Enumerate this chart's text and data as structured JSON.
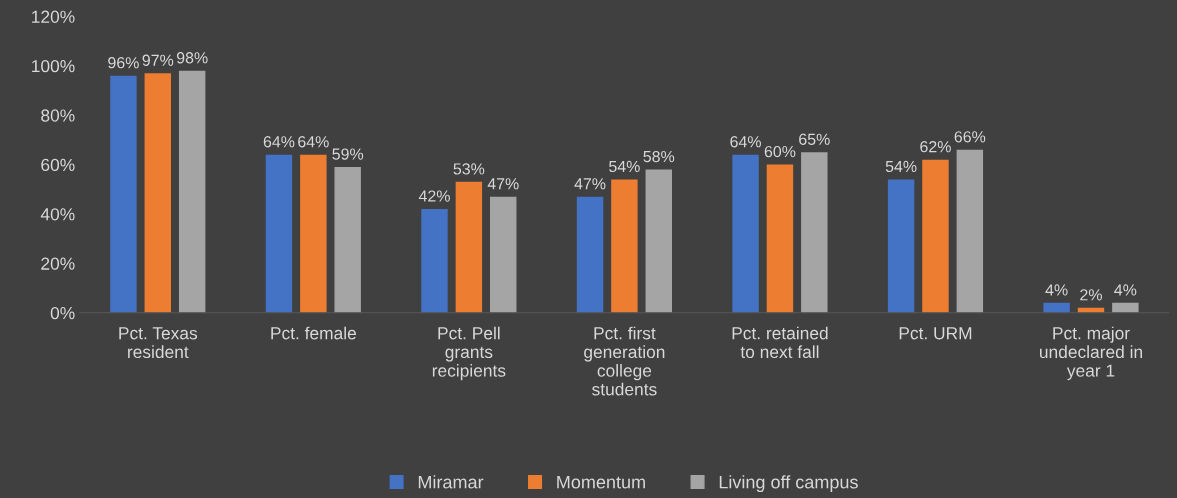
{
  "chart_data": {
    "type": "bar",
    "categories": [
      "Pct. Texas resident",
      "Pct. female",
      "Pct. Pell grants recipients",
      "Pct. first generation college students",
      "Pct. retained to next fall",
      "Pct. URM",
      "Pct. major undeclared in year 1"
    ],
    "series": [
      {
        "name": "Miramar",
        "color": "#4472c4",
        "values": [
          96,
          64,
          42,
          47,
          64,
          54,
          4
        ],
        "value_labels": [
          "96%",
          "64%",
          "42%",
          "47%",
          "64%",
          "54%",
          "4%"
        ]
      },
      {
        "name": "Momentum",
        "color": "#ed7d31",
        "values": [
          97,
          64,
          53,
          54,
          60,
          62,
          2
        ],
        "value_labels": [
          "97%",
          "64%",
          "53%",
          "54%",
          "60%",
          "62%",
          "2%"
        ]
      },
      {
        "name": "Living off campus",
        "color": "#a5a5a5",
        "values": [
          98,
          59,
          47,
          58,
          65,
          66,
          4
        ],
        "value_labels": [
          "98%",
          "59%",
          "47%",
          "58%",
          "65%",
          "66%",
          "4%"
        ]
      }
    ],
    "ylim": [
      0,
      120
    ],
    "yticks": [
      {
        "value": 0,
        "label": "0%"
      },
      {
        "value": 20,
        "label": "20%"
      },
      {
        "value": 40,
        "label": "40%"
      },
      {
        "value": 60,
        "label": "60%"
      },
      {
        "value": 80,
        "label": "80%"
      },
      {
        "value": 100,
        "label": "100%"
      },
      {
        "value": 120,
        "label": "120%"
      }
    ],
    "grid": false,
    "legend": "bottom"
  }
}
